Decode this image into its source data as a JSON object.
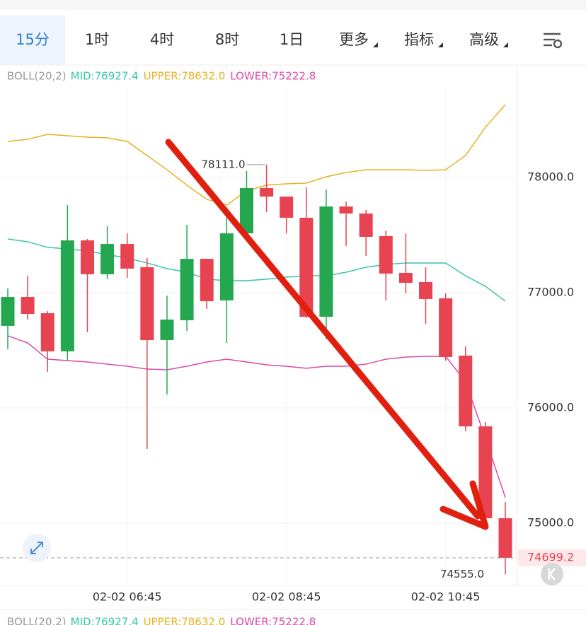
{
  "tabs": [
    {
      "label": "15分"
    },
    {
      "label": "1时"
    },
    {
      "label": "4时"
    },
    {
      "label": "8时"
    },
    {
      "label": "1日"
    },
    {
      "label": "更多",
      "menu": true
    },
    {
      "label": "指标",
      "menu": true
    },
    {
      "label": "高级",
      "menu": true
    }
  ],
  "active_tab": 0,
  "chart_data": {
    "type": "candlestick",
    "indicator": {
      "name": "BOLL(20,2)",
      "items": [
        "MID:76927.4",
        "UPPER:78632.0",
        "LOWER:75222.8"
      ]
    },
    "categories": [
      null,
      null,
      null,
      null,
      null,
      null,
      "02-02 06:45",
      null,
      null,
      null,
      null,
      null,
      null,
      null,
      "02-02 08:45",
      null,
      null,
      null,
      null,
      null,
      null,
      null,
      "02-02 10:45",
      null,
      null,
      null
    ],
    "open": [
      76712,
      76963,
      76822,
      76491,
      77454,
      77160,
      77423,
      77221,
      76589,
      76761,
      77294,
      76933,
      77515,
      77908,
      77834,
      77650,
      76791,
      77748,
      77687,
      77491,
      77172,
      77092,
      76951,
      76454,
      75840,
      75043
    ],
    "high": [
      77037,
      77147,
      76840,
      77761,
      77466,
      77577,
      77515,
      77301,
      76975,
      77589,
      77294,
      77699,
      78055,
      78111,
      77834,
      77914,
      77896,
      77791,
      77718,
      77540,
      77515,
      77221,
      76994,
      76534,
      75877,
      75184
    ],
    "low": [
      76509,
      76767,
      76313,
      76411,
      76656,
      77117,
      77129,
      75644,
      76117,
      76669,
      76859,
      76564,
      77454,
      77699,
      77515,
      76779,
      76595,
      77405,
      77319,
      76933,
      76994,
      76730,
      76411,
      75798,
      75031,
      74555.0
    ],
    "close": [
      76963,
      76816,
      76491,
      77454,
      77160,
      77423,
      77209,
      76589,
      76767,
      77294,
      76926,
      77515,
      77908,
      77834,
      77650,
      76791,
      77748,
      77687,
      77485,
      77166,
      77086,
      76945,
      76442,
      75840,
      75043,
      74699.2
    ],
    "up_color": "#25a750",
    "down_color": "#e84350",
    "series": [
      {
        "name": "MID",
        "color": "#36c6a8",
        "values": [
          77466,
          77442,
          77393,
          77380,
          77362,
          77331,
          77301,
          77258,
          77209,
          77178,
          77117,
          77104,
          77104,
          77117,
          77135,
          77147,
          77147,
          77178,
          77221,
          77245,
          77258,
          77258,
          77258,
          77147,
          77055,
          76927.4
        ]
      },
      {
        "name": "UPPER",
        "color": "#e6b020",
        "values": [
          78313,
          78331,
          78374,
          78362,
          78350,
          78344,
          78313,
          78190,
          78067,
          77933,
          77810,
          77761,
          77883,
          77933,
          77945,
          77951,
          78006,
          78043,
          78067,
          78067,
          78067,
          78061,
          78067,
          78190,
          78436,
          78632.0
        ]
      },
      {
        "name": "LOWER",
        "color": "#d84aa8",
        "values": [
          76626,
          76564,
          76423,
          76411,
          76399,
          76380,
          76362,
          76337,
          76331,
          76362,
          76399,
          76423,
          76399,
          76374,
          76362,
          76344,
          76362,
          76362,
          76380,
          76423,
          76442,
          76448,
          76448,
          76227,
          75736,
          75222.8
        ]
      }
    ],
    "high_label": "78111.0",
    "low_label": "74555.0",
    "last_price_label": "74699.2",
    "ylim": [
      74460,
      78773
    ],
    "yticks": [
      {
        "value": 75000,
        "label": "75000.0"
      },
      {
        "value": 76000,
        "label": "76000.0"
      },
      {
        "value": 77000,
        "label": "77000.0"
      },
      {
        "value": 78000,
        "label": "78000.0"
      }
    ],
    "grid": true
  }
}
